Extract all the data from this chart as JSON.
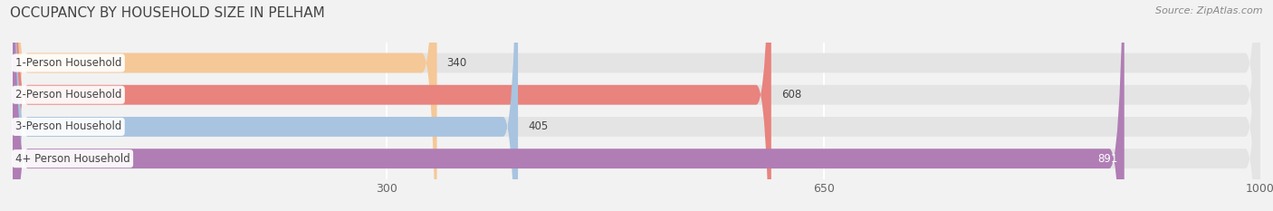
{
  "title": "OCCUPANCY BY HOUSEHOLD SIZE IN PELHAM",
  "source": "Source: ZipAtlas.com",
  "categories": [
    "1-Person Household",
    "2-Person Household",
    "3-Person Household",
    "4+ Person Household"
  ],
  "values": [
    340,
    608,
    405,
    891
  ],
  "bar_colors": [
    "#f5c897",
    "#e8837e",
    "#a8c4e0",
    "#b07db5"
  ],
  "bar_label_colors": [
    "#333333",
    "#333333",
    "#333333",
    "#ffffff"
  ],
  "background_color": "#f2f2f2",
  "bar_bg_color": "#e4e4e4",
  "xlim": [
    0,
    1000
  ],
  "xticks": [
    300,
    650,
    1000
  ],
  "bar_height": 0.62,
  "label_fontsize": 8.5,
  "title_fontsize": 11,
  "source_fontsize": 8,
  "tick_fontsize": 9
}
